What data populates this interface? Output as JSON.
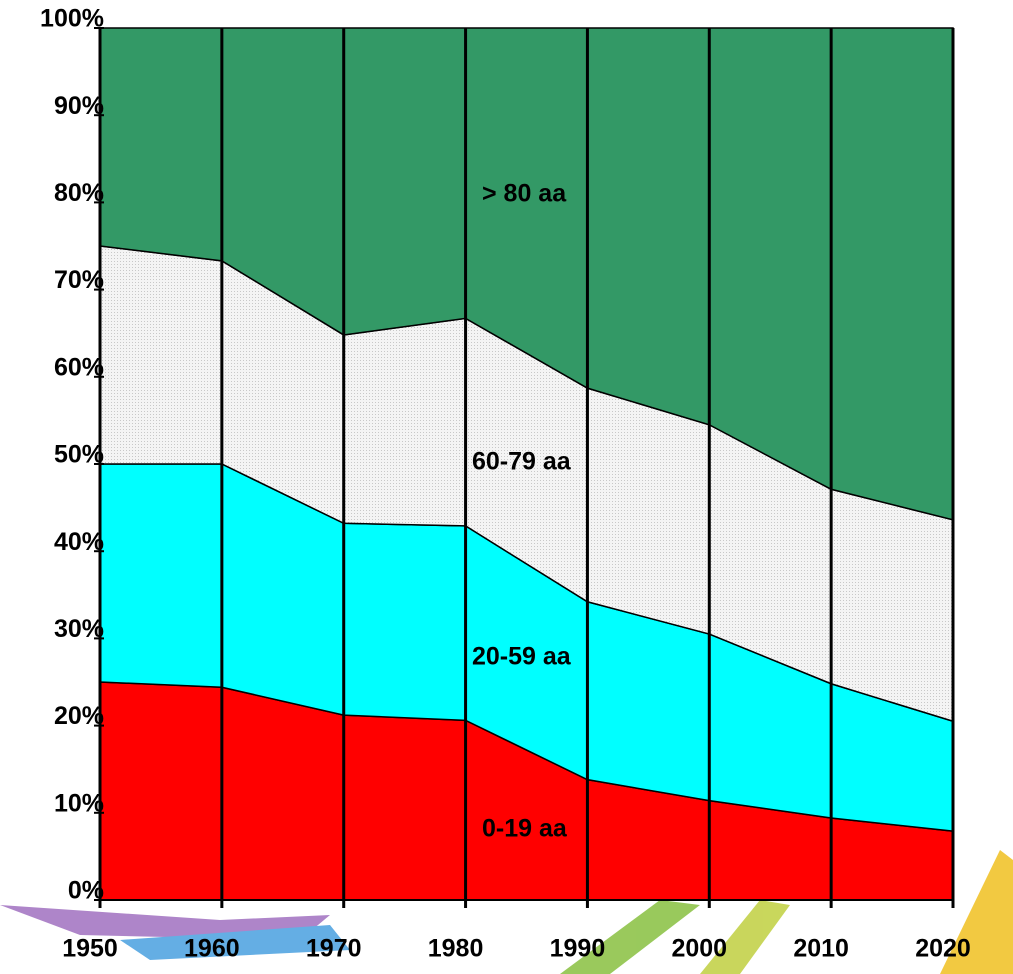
{
  "chart_data": {
    "type": "stacked_area",
    "x": [
      1950,
      1960,
      1970,
      1980,
      1990,
      2000,
      2010,
      2020
    ],
    "series": [
      {
        "name": "0-19 aa",
        "color": "#ff0000",
        "values": [
          25,
          24.4,
          21.2,
          20.6,
          13.8,
          11.4,
          9.4,
          7.9
        ]
      },
      {
        "name": "20-59 aa",
        "color": "#00ffff",
        "values": [
          25,
          25.6,
          22,
          22.3,
          20.4,
          19.1,
          15.4,
          12.6
        ]
      },
      {
        "name": "60-79 aa",
        "color": "#ececec",
        "values": [
          25,
          23.3,
          21.6,
          23.8,
          24.5,
          24,
          22.3,
          23.1
        ]
      },
      {
        "name": "> 80 aa",
        "color": "#339966",
        "values": [
          25,
          26.7,
          35.2,
          33.3,
          41.3,
          45.5,
          52.9,
          56.4
        ]
      }
    ],
    "xlim": [
      1950,
      2020
    ],
    "xticks": [
      1950,
      1960,
      1970,
      1980,
      1990,
      2000,
      2010,
      2020
    ],
    "ylim": [
      0,
      100
    ],
    "yticks": [
      {
        "value": 0,
        "label": "0%"
      },
      {
        "value": 10,
        "label": "10%"
      },
      {
        "value": 20,
        "label": "20%"
      },
      {
        "value": 30,
        "label": "30%"
      },
      {
        "value": 40,
        "label": "40%"
      },
      {
        "value": 50,
        "label": "50%"
      },
      {
        "value": 60,
        "label": "60%"
      },
      {
        "value": 70,
        "label": "70%"
      },
      {
        "value": 80,
        "label": "80%"
      },
      {
        "value": 90,
        "label": "90%"
      },
      {
        "value": 100,
        "label": "100%"
      }
    ]
  }
}
